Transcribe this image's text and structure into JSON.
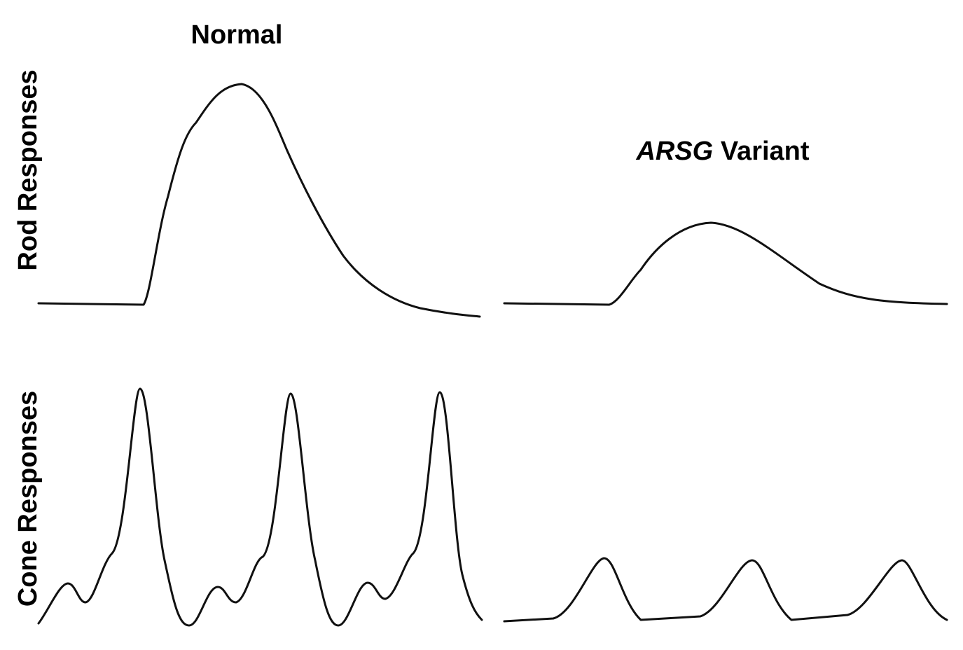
{
  "panels": {
    "normal_title": "Normal",
    "variant_title": {
      "gene": "ARSG",
      "rest": "Variant"
    },
    "rod_label": "Rod Responses",
    "cone_label": "Cone Responses"
  }
}
